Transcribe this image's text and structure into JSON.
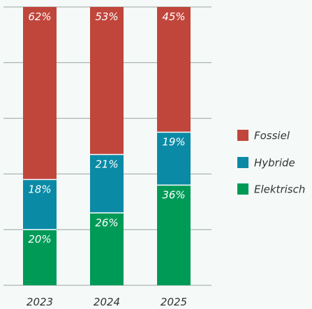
{
  "chart_data": {
    "type": "bar",
    "stacked": true,
    "categories": [
      "2023",
      "2024",
      "2025"
    ],
    "series": [
      {
        "name": "Elektrisch",
        "values": [
          20,
          26,
          36
        ],
        "labels": [
          "20%",
          "26%",
          "36%"
        ],
        "color": "#009a57"
      },
      {
        "name": "Hybride",
        "values": [
          18,
          21,
          19
        ],
        "labels": [
          "18%",
          "21%",
          "19%"
        ],
        "color": "#0b8aa6"
      },
      {
        "name": "Fossiel",
        "values": [
          62,
          53,
          45
        ],
        "labels": [
          "62%",
          "53%",
          "45%"
        ],
        "color": "#c0463c"
      }
    ],
    "legend_order": [
      "Fossiel",
      "Hybride",
      "Elektrisch"
    ],
    "legend_position": "right",
    "ylim": [
      0,
      100
    ],
    "grid": true,
    "gridline_color": "#9aa3a0",
    "background": "#f5faf8"
  }
}
